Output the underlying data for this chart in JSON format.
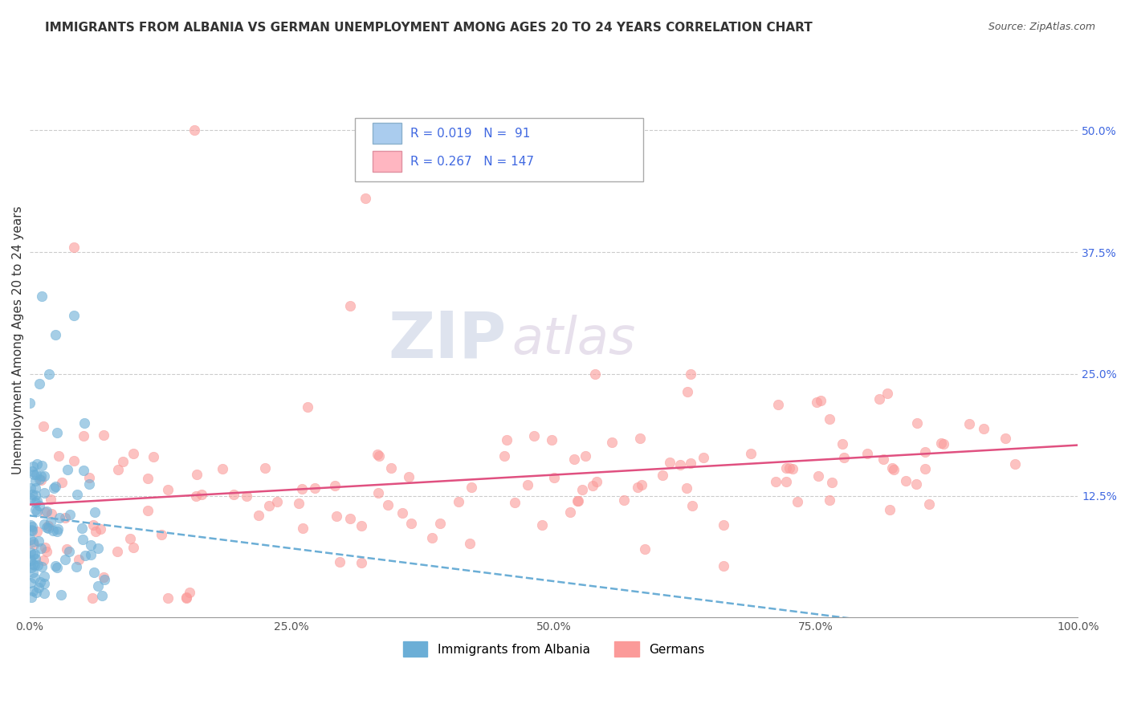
{
  "title": "IMMIGRANTS FROM ALBANIA VS GERMAN UNEMPLOYMENT AMONG AGES 20 TO 24 YEARS CORRELATION CHART",
  "source": "Source: ZipAtlas.com",
  "ylabel": "Unemployment Among Ages 20 to 24 years",
  "xlim": [
    0,
    1.0
  ],
  "ylim_max": 0.57,
  "yticks": [
    0.125,
    0.25,
    0.375,
    0.5
  ],
  "ytick_labels": [
    "12.5%",
    "25.0%",
    "37.5%",
    "50.0%"
  ],
  "xticks": [
    0.0,
    0.25,
    0.5,
    0.75,
    1.0
  ],
  "xtick_labels": [
    "0.0%",
    "25.0%",
    "50.0%",
    "75.0%",
    "100.0%"
  ],
  "series1_label": "Immigrants from Albania",
  "series1_R": 0.019,
  "series1_N": 91,
  "series1_color": "#6baed6",
  "series2_label": "Germans",
  "series2_R": 0.267,
  "series2_N": 147,
  "series2_color": "#fb9a99",
  "legend_R_color": "#4169e1",
  "trend1_color": "#6baed6",
  "trend2_color": "#e05080",
  "background_color": "#ffffff",
  "grid_color": "#cccccc",
  "watermark_zip": "ZIP",
  "watermark_atlas": "atlas",
  "title_fontsize": 11,
  "axis_label_fontsize": 11,
  "tick_fontsize": 10,
  "legend_fontsize": 11,
  "seed": 42
}
